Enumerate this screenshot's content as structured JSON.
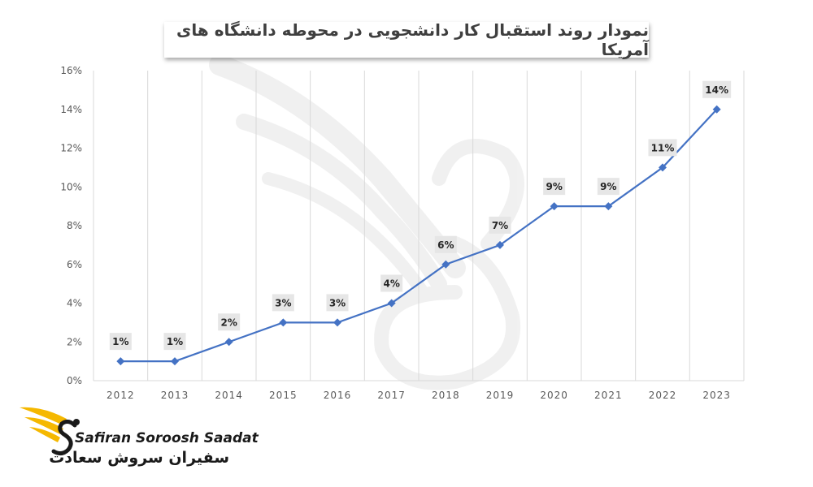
{
  "chart_data": {
    "type": "line",
    "title": "نمودار روند استقبال کار دانشجویی در محوطه دانشگاه های آمریکا",
    "categories": [
      "2012",
      "2013",
      "2014",
      "2015",
      "2016",
      "2017",
      "2018",
      "2019",
      "2020",
      "2021",
      "2022",
      "2023"
    ],
    "series": [
      {
        "values": [
          1,
          1,
          2,
          3,
          3,
          4,
          6,
          7,
          9,
          9,
          11,
          14
        ],
        "color": "#4472c4"
      }
    ],
    "data_labels": [
      "1%",
      "1%",
      "2%",
      "3%",
      "3%",
      "4%",
      "6%",
      "7%",
      "9%",
      "9%",
      "11%",
      "14%"
    ],
    "ylim": [
      0,
      16
    ],
    "yticks": [
      0,
      2,
      4,
      6,
      8,
      10,
      12,
      14,
      16
    ],
    "ytick_labels": [
      "0%",
      "2%",
      "4%",
      "6%",
      "8%",
      "10%",
      "12%",
      "14%",
      "16%"
    ],
    "grid": "vertical",
    "legend": "none"
  },
  "brand": {
    "name_en": "Safiran Soroosh Saadat",
    "name_fa": "سفیران سروش سعادت",
    "icon": "winged-s-logo-icon",
    "colors": {
      "wing": "#f5b800",
      "s": "#1a1a1a"
    }
  },
  "watermark": {
    "icon": "winged-s-watermark-icon"
  }
}
